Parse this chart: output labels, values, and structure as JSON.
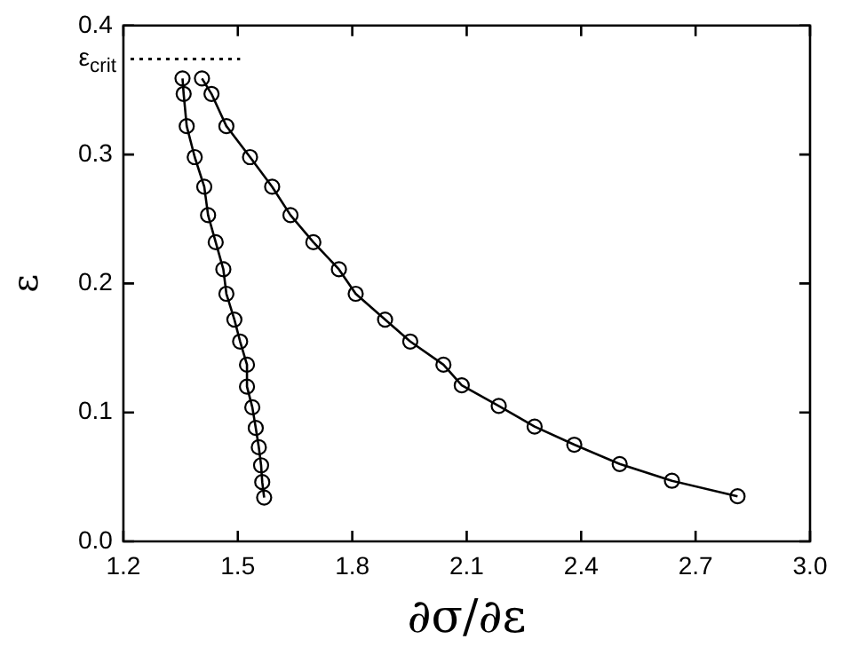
{
  "chart_data": {
    "type": "line",
    "xlabel": "∂σ/∂ε",
    "ylabel": "ε",
    "xlim": [
      1.2,
      3.0
    ],
    "xticks": [
      1.2,
      1.5,
      1.8,
      2.1,
      2.4,
      2.7,
      {
        "value": 3.0,
        "label": "3.0"
      }
    ],
    "ylim": [
      0.0,
      0.4
    ],
    "yticks": [
      {
        "value": 0.0,
        "label": "0.0"
      },
      0.1,
      0.2,
      0.3,
      0.4
    ],
    "marker": "circle",
    "line_style": "solid",
    "grid": false,
    "legend": false,
    "series": [
      {
        "color": "#000000",
        "x": [
          1.355,
          1.358,
          1.366,
          1.387,
          1.412,
          1.422,
          1.442,
          1.462,
          1.47,
          1.491,
          1.506,
          1.524,
          1.524,
          1.538,
          1.547,
          1.555,
          1.561,
          1.564,
          1.569
        ],
        "values": [
          0.359,
          0.347,
          0.322,
          0.298,
          0.275,
          0.253,
          0.232,
          0.211,
          0.192,
          0.172,
          0.155,
          0.137,
          0.12,
          0.104,
          0.088,
          0.073,
          0.059,
          0.046,
          0.034
        ]
      },
      {
        "color": "#000000",
        "x": [
          1.406,
          1.431,
          1.47,
          1.532,
          1.59,
          1.638,
          1.698,
          1.765,
          1.809,
          1.886,
          1.952,
          2.039,
          2.087,
          2.184,
          2.278,
          2.382,
          2.501,
          2.638,
          2.81
        ],
        "values": [
          0.359,
          0.347,
          0.322,
          0.298,
          0.275,
          0.253,
          0.232,
          0.211,
          0.192,
          0.172,
          0.155,
          0.137,
          0.121,
          0.105,
          0.089,
          0.075,
          0.06,
          0.047,
          0.035
        ]
      }
    ],
    "ref_lines": [
      {
        "axis": "y",
        "value": 0.374,
        "label": "ε$_{crit}$",
        "line_style": "dotted",
        "color": "#000000"
      }
    ]
  }
}
